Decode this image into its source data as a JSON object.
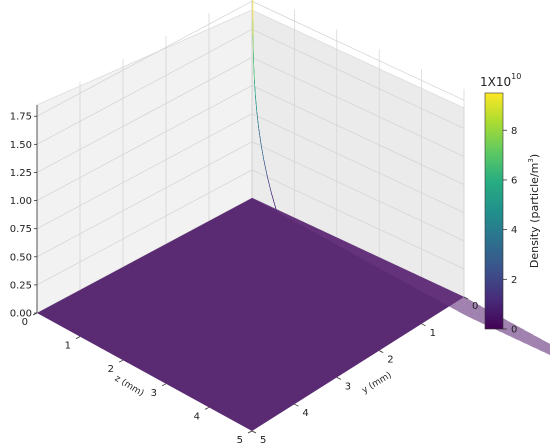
{
  "chart_data": {
    "type": "surface3d",
    "title": "",
    "x_axis": {
      "label": "z (mm)",
      "ticks": [
        "0",
        "1",
        "2",
        "3",
        "4",
        "5"
      ],
      "range": [
        0,
        5
      ]
    },
    "y_axis": {
      "label": "y (mm)",
      "ticks": [
        "0",
        "1",
        "2",
        "3",
        "4",
        "5"
      ],
      "range": [
        0,
        5
      ]
    },
    "z_axis": {
      "label": "",
      "ticks": [
        "0.00",
        "0.25",
        "0.50",
        "0.75",
        "1.00",
        "1.25",
        "1.50",
        "1.75"
      ],
      "range": [
        0,
        1.85
      ]
    },
    "surface": {
      "description_of_shape": "sharp peak at corner",
      "peak": {
        "z_mm": 0,
        "y_mm": 0,
        "value": 1.85
      },
      "base_value": 0.0
    },
    "colorbar": {
      "label_base": "Density (particle/m",
      "label_sup": "3",
      "label_close": ")",
      "scale_base": "1X10",
      "scale_exp": "10",
      "ticks": [
        "0",
        "2",
        "4",
        "6",
        "8"
      ],
      "range": [
        0,
        9.5
      ],
      "colormap": "viridis"
    },
    "grid": true
  }
}
